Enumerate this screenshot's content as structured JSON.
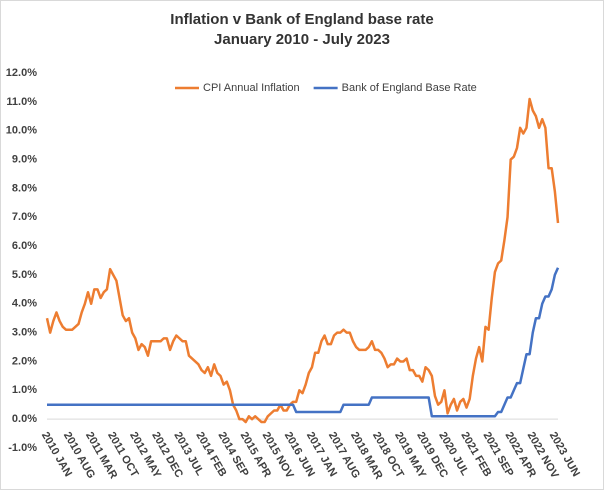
{
  "chart_data": {
    "type": "line",
    "title": "Inflation v Bank of England base rate",
    "subtitle": "January 2010 - July 2023",
    "categories": [
      "2010 JAN",
      null,
      null,
      null,
      null,
      null,
      null,
      "2010 AUG",
      null,
      null,
      null,
      null,
      null,
      null,
      "2011 MAR",
      null,
      null,
      null,
      null,
      null,
      null,
      "2011 OCT",
      null,
      null,
      null,
      null,
      null,
      null,
      "2012 MAY",
      null,
      null,
      null,
      null,
      null,
      null,
      "2012 DEC",
      null,
      null,
      null,
      null,
      null,
      null,
      "2013 JUL",
      null,
      null,
      null,
      null,
      null,
      null,
      "2014 FEB",
      null,
      null,
      null,
      null,
      null,
      null,
      "2014 SEP",
      null,
      null,
      null,
      null,
      null,
      null,
      "2015 APR",
      null,
      null,
      null,
      null,
      null,
      null,
      "2015 NOV",
      null,
      null,
      null,
      null,
      null,
      null,
      "2016 JUN",
      null,
      null,
      null,
      null,
      null,
      null,
      "2017 JAN",
      null,
      null,
      null,
      null,
      null,
      null,
      "2017 AUG",
      null,
      null,
      null,
      null,
      null,
      null,
      "2018 MAR",
      null,
      null,
      null,
      null,
      null,
      null,
      "2018 OCT",
      null,
      null,
      null,
      null,
      null,
      null,
      "2019 MAY",
      null,
      null,
      null,
      null,
      null,
      null,
      "2019 DEC",
      null,
      null,
      null,
      null,
      null,
      null,
      "2020 JUL",
      null,
      null,
      null,
      null,
      null,
      null,
      "2021 FEB",
      null,
      null,
      null,
      null,
      null,
      null,
      "2021 SEP",
      null,
      null,
      null,
      null,
      null,
      null,
      "2022 APR",
      null,
      null,
      null,
      null,
      null,
      null,
      "2022 NOV",
      null,
      null,
      null,
      null,
      null,
      null,
      "2023 JUN",
      null
    ],
    "series": [
      {
        "name": "CPI Annual Inflation",
        "color": "#ed7d31",
        "values": [
          3.5,
          3.0,
          3.4,
          3.7,
          3.4,
          3.2,
          3.1,
          3.1,
          3.1,
          3.2,
          3.3,
          3.7,
          4.0,
          4.4,
          4.0,
          4.5,
          4.5,
          4.2,
          4.4,
          4.5,
          5.2,
          5.0,
          4.8,
          4.2,
          3.6,
          3.4,
          3.5,
          3.0,
          2.8,
          2.4,
          2.6,
          2.5,
          2.2,
          2.7,
          2.7,
          2.7,
          2.7,
          2.8,
          2.8,
          2.4,
          2.7,
          2.9,
          2.8,
          2.7,
          2.7,
          2.2,
          2.1,
          2.0,
          1.9,
          1.7,
          1.6,
          1.8,
          1.5,
          1.9,
          1.6,
          1.5,
          1.2,
          1.3,
          1.0,
          0.5,
          0.3,
          0.0,
          0.0,
          -0.1,
          0.1,
          0.0,
          0.1,
          0.0,
          -0.1,
          -0.1,
          0.1,
          0.2,
          0.3,
          0.3,
          0.5,
          0.3,
          0.3,
          0.5,
          0.6,
          0.6,
          1.0,
          0.9,
          1.2,
          1.6,
          1.8,
          2.3,
          2.3,
          2.7,
          2.9,
          2.6,
          2.6,
          2.9,
          3.0,
          3.0,
          3.1,
          3.0,
          3.0,
          2.7,
          2.5,
          2.4,
          2.4,
          2.4,
          2.5,
          2.7,
          2.4,
          2.4,
          2.3,
          2.1,
          1.8,
          1.9,
          1.9,
          2.1,
          2.0,
          2.0,
          2.1,
          1.7,
          1.7,
          1.5,
          1.5,
          1.3,
          1.8,
          1.7,
          1.5,
          0.8,
          0.5,
          0.6,
          1.0,
          0.2,
          0.5,
          0.7,
          0.3,
          0.6,
          0.7,
          0.4,
          0.7,
          1.5,
          2.1,
          2.5,
          2.0,
          3.2,
          3.1,
          4.2,
          5.1,
          5.4,
          5.5,
          6.2,
          7.0,
          9.0,
          9.1,
          9.4,
          10.1,
          9.9,
          10.1,
          11.1,
          10.7,
          10.5,
          10.1,
          10.4,
          10.1,
          8.7,
          8.7,
          7.9,
          6.8
        ]
      },
      {
        "name": "Bank of England Base Rate",
        "color": "#4472c4",
        "values": [
          0.5,
          0.5,
          0.5,
          0.5,
          0.5,
          0.5,
          0.5,
          0.5,
          0.5,
          0.5,
          0.5,
          0.5,
          0.5,
          0.5,
          0.5,
          0.5,
          0.5,
          0.5,
          0.5,
          0.5,
          0.5,
          0.5,
          0.5,
          0.5,
          0.5,
          0.5,
          0.5,
          0.5,
          0.5,
          0.5,
          0.5,
          0.5,
          0.5,
          0.5,
          0.5,
          0.5,
          0.5,
          0.5,
          0.5,
          0.5,
          0.5,
          0.5,
          0.5,
          0.5,
          0.5,
          0.5,
          0.5,
          0.5,
          0.5,
          0.5,
          0.5,
          0.5,
          0.5,
          0.5,
          0.5,
          0.5,
          0.5,
          0.5,
          0.5,
          0.5,
          0.5,
          0.5,
          0.5,
          0.5,
          0.5,
          0.5,
          0.5,
          0.5,
          0.5,
          0.5,
          0.5,
          0.5,
          0.5,
          0.5,
          0.5,
          0.5,
          0.5,
          0.5,
          0.5,
          0.25,
          0.25,
          0.25,
          0.25,
          0.25,
          0.25,
          0.25,
          0.25,
          0.25,
          0.25,
          0.25,
          0.25,
          0.25,
          0.25,
          0.25,
          0.5,
          0.5,
          0.5,
          0.5,
          0.5,
          0.5,
          0.5,
          0.5,
          0.5,
          0.75,
          0.75,
          0.75,
          0.75,
          0.75,
          0.75,
          0.75,
          0.75,
          0.75,
          0.75,
          0.75,
          0.75,
          0.75,
          0.75,
          0.75,
          0.75,
          0.75,
          0.75,
          0.75,
          0.1,
          0.1,
          0.1,
          0.1,
          0.1,
          0.1,
          0.1,
          0.1,
          0.1,
          0.1,
          0.1,
          0.1,
          0.1,
          0.1,
          0.1,
          0.1,
          0.1,
          0.1,
          0.1,
          0.1,
          0.1,
          0.25,
          0.25,
          0.5,
          0.75,
          0.75,
          1.0,
          1.25,
          1.25,
          1.75,
          2.25,
          2.25,
          3.0,
          3.5,
          3.5,
          4.0,
          4.25,
          4.25,
          4.5,
          5.0,
          5.25
        ]
      }
    ],
    "ylim": [
      -1,
      12
    ],
    "yticks": [
      {
        "value": -1,
        "label": "-1.0%"
      },
      {
        "value": 0,
        "label": "0.0%"
      },
      {
        "value": 1,
        "label": "1.0%"
      },
      {
        "value": 2,
        "label": "2.0%"
      },
      {
        "value": 3,
        "label": "3.0%"
      },
      {
        "value": 4,
        "label": "4.0%"
      },
      {
        "value": 5,
        "label": "5.0%"
      },
      {
        "value": 6,
        "label": "6.0%"
      },
      {
        "value": 7,
        "label": "7.0%"
      },
      {
        "value": 8,
        "label": "8.0%"
      },
      {
        "value": 9,
        "label": "9.0%"
      },
      {
        "value": 10,
        "label": "10.0%"
      },
      {
        "value": 11,
        "label": "11.0%"
      },
      {
        "value": 12,
        "label": "12.0%"
      }
    ],
    "grid": false,
    "legend": "top"
  }
}
